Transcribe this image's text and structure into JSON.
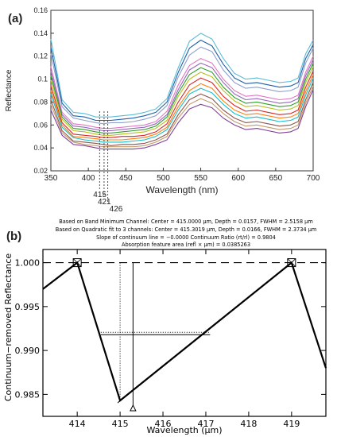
{
  "chart_data": [
    {
      "panel_label": "(a)",
      "type": "line",
      "xlabel": "Wavelength  (nm)",
      "ylabel": "Reflectance",
      "xlim": [
        350,
        700
      ],
      "ylim": [
        0.02,
        0.16
      ],
      "xticks": [
        350,
        400,
        450,
        500,
        550,
        600,
        650,
        700
      ],
      "yticks": [
        0.02,
        0.04,
        0.06,
        0.08,
        0.1,
        0.12,
        0.14,
        0.16
      ],
      "grid": false,
      "legend": "none",
      "x": [
        350,
        365,
        380,
        395,
        410,
        420,
        430,
        445,
        460,
        475,
        490,
        505,
        520,
        535,
        550,
        565,
        580,
        595,
        610,
        625,
        640,
        655,
        670,
        680,
        690,
        700
      ],
      "series": [
        {
          "color": "#5bbcd6",
          "values": [
            0.135,
            0.082,
            0.071,
            0.07,
            0.067,
            0.067,
            0.067,
            0.068,
            0.069,
            0.071,
            0.074,
            0.083,
            0.11,
            0.133,
            0.14,
            0.135,
            0.118,
            0.105,
            0.1,
            0.101,
            0.099,
            0.097,
            0.098,
            0.101,
            0.122,
            0.134
          ]
        },
        {
          "color": "#1f5fa8",
          "values": [
            0.128,
            0.079,
            0.068,
            0.067,
            0.064,
            0.064,
            0.064,
            0.065,
            0.066,
            0.068,
            0.071,
            0.08,
            0.106,
            0.127,
            0.134,
            0.129,
            0.113,
            0.101,
            0.096,
            0.097,
            0.095,
            0.093,
            0.094,
            0.097,
            0.118,
            0.13
          ]
        },
        {
          "color": "#8da0cb",
          "values": [
            0.122,
            0.076,
            0.066,
            0.064,
            0.062,
            0.061,
            0.062,
            0.062,
            0.063,
            0.065,
            0.068,
            0.077,
            0.102,
            0.121,
            0.128,
            0.124,
            0.108,
            0.097,
            0.092,
            0.093,
            0.091,
            0.089,
            0.09,
            0.093,
            0.114,
            0.127
          ]
        },
        {
          "color": "#e377c2",
          "values": [
            0.111,
            0.071,
            0.061,
            0.06,
            0.058,
            0.057,
            0.057,
            0.058,
            0.059,
            0.06,
            0.063,
            0.072,
            0.095,
            0.112,
            0.118,
            0.114,
            0.1,
            0.09,
            0.085,
            0.086,
            0.084,
            0.082,
            0.083,
            0.086,
            0.106,
            0.12
          ]
        },
        {
          "color": "#9467bd",
          "values": [
            0.107,
            0.069,
            0.059,
            0.058,
            0.056,
            0.055,
            0.055,
            0.056,
            0.057,
            0.058,
            0.061,
            0.069,
            0.091,
            0.108,
            0.114,
            0.11,
            0.097,
            0.087,
            0.082,
            0.083,
            0.081,
            0.079,
            0.08,
            0.083,
            0.103,
            0.117
          ]
        },
        {
          "color": "#2ca02c",
          "values": [
            0.103,
            0.067,
            0.057,
            0.056,
            0.054,
            0.053,
            0.053,
            0.054,
            0.055,
            0.056,
            0.059,
            0.067,
            0.088,
            0.104,
            0.11,
            0.106,
            0.093,
            0.084,
            0.079,
            0.08,
            0.078,
            0.076,
            0.077,
            0.08,
            0.1,
            0.114
          ]
        },
        {
          "color": "#bcbd22",
          "values": [
            0.099,
            0.065,
            0.055,
            0.054,
            0.052,
            0.051,
            0.051,
            0.052,
            0.053,
            0.054,
            0.057,
            0.064,
            0.085,
            0.1,
            0.106,
            0.102,
            0.09,
            0.081,
            0.076,
            0.077,
            0.075,
            0.073,
            0.074,
            0.077,
            0.097,
            0.111
          ]
        },
        {
          "color": "#d62728",
          "values": [
            0.094,
            0.062,
            0.052,
            0.051,
            0.05,
            0.049,
            0.049,
            0.05,
            0.05,
            0.051,
            0.054,
            0.061,
            0.08,
            0.095,
            0.101,
            0.097,
            0.085,
            0.077,
            0.072,
            0.073,
            0.071,
            0.069,
            0.07,
            0.073,
            0.093,
            0.107
          ]
        },
        {
          "color": "#ff7f0e",
          "values": [
            0.09,
            0.06,
            0.05,
            0.049,
            0.048,
            0.047,
            0.047,
            0.047,
            0.048,
            0.049,
            0.052,
            0.058,
            0.076,
            0.09,
            0.096,
            0.092,
            0.081,
            0.073,
            0.069,
            0.07,
            0.068,
            0.066,
            0.067,
            0.07,
            0.089,
            0.104
          ]
        },
        {
          "color": "#17becf",
          "values": [
            0.087,
            0.058,
            0.049,
            0.047,
            0.046,
            0.045,
            0.045,
            0.045,
            0.046,
            0.047,
            0.05,
            0.056,
            0.073,
            0.087,
            0.092,
            0.088,
            0.078,
            0.07,
            0.066,
            0.067,
            0.065,
            0.063,
            0.064,
            0.067,
            0.086,
            0.101
          ]
        },
        {
          "color": "#8c564b",
          "values": [
            0.082,
            0.055,
            0.046,
            0.045,
            0.044,
            0.043,
            0.042,
            0.043,
            0.043,
            0.044,
            0.047,
            0.052,
            0.069,
            0.082,
            0.087,
            0.083,
            0.073,
            0.066,
            0.062,
            0.063,
            0.061,
            0.059,
            0.06,
            0.063,
            0.082,
            0.097
          ]
        },
        {
          "color": "#c49a6c",
          "values": [
            0.078,
            0.053,
            0.045,
            0.043,
            0.042,
            0.041,
            0.041,
            0.041,
            0.041,
            0.042,
            0.045,
            0.05,
            0.066,
            0.078,
            0.083,
            0.079,
            0.07,
            0.063,
            0.059,
            0.06,
            0.058,
            0.056,
            0.057,
            0.06,
            0.079,
            0.094
          ]
        },
        {
          "color": "#7f3f98",
          "values": [
            0.073,
            0.051,
            0.043,
            0.042,
            0.04,
            0.039,
            0.039,
            0.039,
            0.039,
            0.04,
            0.043,
            0.047,
            0.062,
            0.074,
            0.078,
            0.075,
            0.066,
            0.06,
            0.056,
            0.057,
            0.055,
            0.053,
            0.054,
            0.057,
            0.076,
            0.091
          ]
        }
      ],
      "annotations": [
        "415",
        "421",
        "426"
      ],
      "annotation_x": [
        415,
        421,
        426
      ]
    },
    {
      "panel_label": "(b)",
      "type": "line",
      "xlabel": "Wavelength (μm)",
      "ylabel": "Continuum−removed Reflectance",
      "xlim": [
        413.2,
        419.8
      ],
      "ylim": [
        0.9825,
        1.0015
      ],
      "xticks": [
        414,
        415,
        416,
        417,
        418,
        419
      ],
      "yticks": [
        0.985,
        0.99,
        0.995,
        1.0
      ],
      "yticklabels": [
        "0.985",
        "0.990",
        "0.995",
        "1.000"
      ],
      "grid": false,
      "header_lines": [
        "Based on Band Minimum Channel:  Center = 415.0000 μm,  Depth = 0.0157,  FWHM = 2.5158 μm",
        "Based on Quadratic fit to 3 channels:  Center = 415.3019 μm,  Depth = 0.0166,  FWHM = 2.3734 μm",
        "Slope of continuum line = −0.0000   Continuum Ratio (rt/rl) = 0.9804",
        "Absorption feature area (refl × μm) = 0.0385263"
      ],
      "series": [
        {
          "name": "",
          "x": [
            413.2,
            414.0,
            415.0,
            419.0,
            419.8
          ],
          "values": [
            0.997,
            1.0,
            0.9843,
            1.0,
            0.988
          ]
        }
      ],
      "continuum": {
        "x": [
          414.0,
          419.0
        ],
        "values": [
          1.0,
          1.0
        ]
      },
      "ticks_on_curve": [
        [
          415.0,
          0.9843
        ],
        [
          416.0,
          0.9882
        ],
        [
          417.0,
          0.9921
        ],
        [
          418.0,
          0.9961
        ]
      ],
      "endpoint_markers": [
        [
          414.0,
          1.0
        ],
        [
          419.0,
          1.0
        ]
      ],
      "band_minimum": {
        "x": 415.0,
        "y": 0.9843
      },
      "quadratic_center": {
        "x": 415.3019,
        "y": 0.9834
      },
      "fwhm_level": 0.9918,
      "fwhm_band": {
        "x_left": 414.55,
        "x_right": 417.1
      }
    }
  ]
}
